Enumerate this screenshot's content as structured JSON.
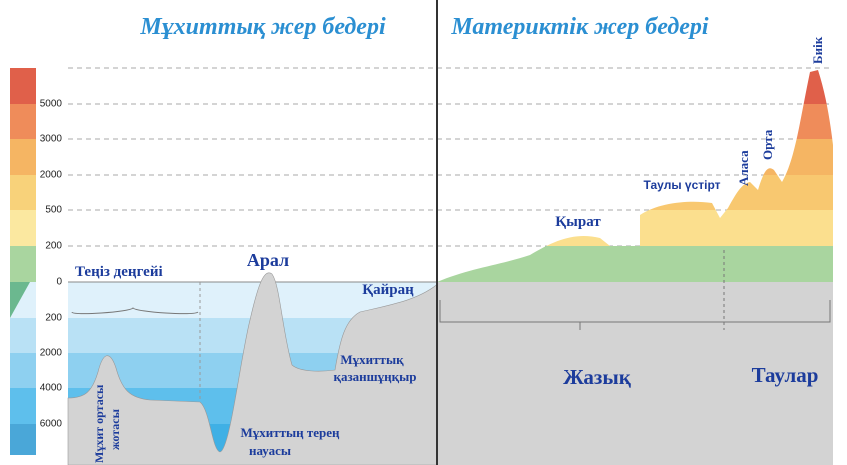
{
  "titles": {
    "ocean": "Мұхиттық жер бедері",
    "continent": "Материктік жер бедері"
  },
  "scale": {
    "above": [
      "5000",
      "3000",
      "2000",
      "500",
      "200",
      "0"
    ],
    "below": [
      "200",
      "2000",
      "4000",
      "6000"
    ]
  },
  "ocean_labels": {
    "sea_level": "Теңіз деңгейі",
    "island": "Арал",
    "shelf": "Қайраң",
    "basin_1": "Мұхиттық",
    "basin_2": "қазаншұңқыр",
    "ridge_1": "Мұхит ортасы",
    "ridge_2": "жотасы",
    "trench_1": "Мұхиттың терең",
    "trench_2": "науасы"
  },
  "land_labels": {
    "hill": "Қырат",
    "plateau": "Таулы үстірт",
    "low": "Аласа",
    "mid": "Орта",
    "high": "Биік",
    "plain": "Жазық",
    "mountains": "Таулар"
  }
}
